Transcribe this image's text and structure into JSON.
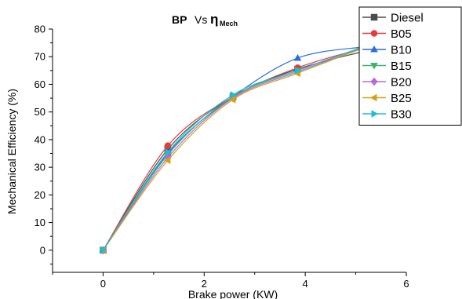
{
  "chart_data": {
    "type": "line",
    "title_parts": [
      "BP",
      "Vs",
      "η",
      "Mech"
    ],
    "xlabel": "Brake power (KW)",
    "ylabel": "Mechanical Efficiency (%)",
    "xlim": [
      -1,
      6
    ],
    "ylim": [
      -8,
      80
    ],
    "xticks": [
      "0",
      "2",
      "4",
      "6"
    ],
    "yticks": [
      "0",
      "10",
      "20",
      "30",
      "40",
      "50",
      "60",
      "70",
      "80"
    ],
    "grid": false,
    "legend_position": "top-right",
    "x": [
      0,
      1.28,
      2.57,
      3.85,
      5.13
    ],
    "series": [
      {
        "name": "Diesel",
        "color": "#4d4d4d",
        "marker": "square",
        "values": [
          0,
          36.5,
          55.5,
          65.5,
          71.8
        ]
      },
      {
        "name": "B05",
        "color": "#e8393b",
        "marker": "circle",
        "values": [
          0,
          37.8,
          55.5,
          66.0,
          73.0
        ]
      },
      {
        "name": "B10",
        "color": "#2d6cdf",
        "marker": "triangle-up",
        "values": [
          0,
          35.0,
          55.5,
          69.5,
          73.5
        ]
      },
      {
        "name": "B15",
        "color": "#3cb371",
        "marker": "triangle-down",
        "values": [
          0,
          34.5,
          55.5,
          65.0,
          73.3
        ]
      },
      {
        "name": "B20",
        "color": "#b66bdc",
        "marker": "diamond",
        "values": [
          0,
          33.5,
          55.0,
          64.5,
          73.0
        ]
      },
      {
        "name": "B25",
        "color": "#d4a017",
        "marker": "triangle-left",
        "values": [
          0,
          32.5,
          54.5,
          64.0,
          73.0
        ]
      },
      {
        "name": "B30",
        "color": "#1fbcd3",
        "marker": "triangle-right",
        "values": [
          0,
          35.5,
          56.2,
          65.0,
          73.5
        ]
      }
    ]
  }
}
